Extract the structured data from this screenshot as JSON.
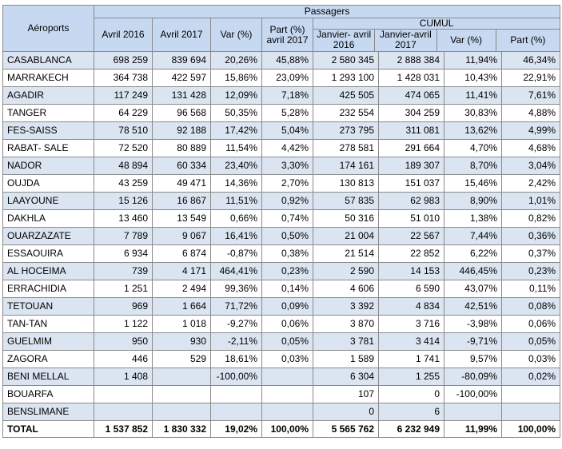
{
  "headers": {
    "airports": "Aéroports",
    "group_passengers": "Passagers",
    "group_cumul": "CUMUL",
    "april2016": "Avril 2016",
    "april2017": "Avril 2017",
    "var": "Var (%)",
    "part_april2017": "Part (%) avril 2017",
    "jan_apr2016": "Janvier- avril 2016",
    "jan_apr2017": "Janvier-avril 2017",
    "cum_var": "Var (%)",
    "cum_part": "Part (%)"
  },
  "rows": [
    [
      "CASABLANCA",
      "698 259",
      "839 694",
      "20,26%",
      "45,88%",
      "2 580 345",
      "2 888 384",
      "11,94%",
      "46,34%"
    ],
    [
      "MARRAKECH",
      "364 738",
      "422 597",
      "15,86%",
      "23,09%",
      "1 293 100",
      "1 428 031",
      "10,43%",
      "22,91%"
    ],
    [
      "AGADIR",
      "117 249",
      "131 428",
      "12,09%",
      "7,18%",
      "425 505",
      "474 065",
      "11,41%",
      "7,61%"
    ],
    [
      "TANGER",
      "64 229",
      "96 568",
      "50,35%",
      "5,28%",
      "232 554",
      "304 259",
      "30,83%",
      "4,88%"
    ],
    [
      "FES-SAISS",
      "78 510",
      "92 188",
      "17,42%",
      "5,04%",
      "273 795",
      "311 081",
      "13,62%",
      "4,99%"
    ],
    [
      "RABAT- SALE",
      "72 520",
      "80 889",
      "11,54%",
      "4,42%",
      "278 581",
      "291 664",
      "4,70%",
      "4,68%"
    ],
    [
      "NADOR",
      "48 894",
      "60 334",
      "23,40%",
      "3,30%",
      "174 161",
      "189 307",
      "8,70%",
      "3,04%"
    ],
    [
      "OUJDA",
      "43 259",
      "49 471",
      "14,36%",
      "2,70%",
      "130 813",
      "151 037",
      "15,46%",
      "2,42%"
    ],
    [
      "LAAYOUNE",
      "15 126",
      "16 867",
      "11,51%",
      "0,92%",
      "57 835",
      "62 983",
      "8,90%",
      "1,01%"
    ],
    [
      "DAKHLA",
      "13 460",
      "13 549",
      "0,66%",
      "0,74%",
      "50 316",
      "51 010",
      "1,38%",
      "0,82%"
    ],
    [
      "OUARZAZATE",
      "7 789",
      "9 067",
      "16,41%",
      "0,50%",
      "21 004",
      "22 567",
      "7,44%",
      "0,36%"
    ],
    [
      "ESSAOUIRA",
      "6 934",
      "6 874",
      "-0,87%",
      "0,38%",
      "21 514",
      "22 852",
      "6,22%",
      "0,37%"
    ],
    [
      "AL HOCEIMA",
      "739",
      "4 171",
      "464,41%",
      "0,23%",
      "2 590",
      "14 153",
      "446,45%",
      "0,23%"
    ],
    [
      "ERRACHIDIA",
      "1 251",
      "2 494",
      "99,36%",
      "0,14%",
      "4 606",
      "6 590",
      "43,07%",
      "0,11%"
    ],
    [
      "TETOUAN",
      "969",
      "1 664",
      "71,72%",
      "0,09%",
      "3 392",
      "4 834",
      "42,51%",
      "0,08%"
    ],
    [
      "TAN-TAN",
      "1 122",
      "1 018",
      "-9,27%",
      "0,06%",
      "3 870",
      "3 716",
      "-3,98%",
      "0,06%"
    ],
    [
      "GUELMIM",
      "950",
      "930",
      "-2,11%",
      "0,05%",
      "3 781",
      "3 414",
      "-9,71%",
      "0,05%"
    ],
    [
      "ZAGORA",
      "446",
      "529",
      "18,61%",
      "0,03%",
      "1 589",
      "1 741",
      "9,57%",
      "0,03%"
    ],
    [
      "BENI MELLAL",
      "1 408",
      "",
      "-100,00%",
      "",
      "6 304",
      "1 255",
      "-80,09%",
      "0,02%"
    ],
    [
      "BOUARFA",
      "",
      "",
      "",
      "",
      "107",
      "0",
      "-100,00%",
      ""
    ],
    [
      "BENSLIMANE",
      "",
      "",
      "",
      "",
      "0",
      "6",
      "",
      ""
    ]
  ],
  "total": [
    "TOTAL",
    "1 537 852",
    "1 830 332",
    "19,02%",
    "100,00%",
    "5 565 762",
    "6 232 949",
    "11,99%",
    "100,00%"
  ],
  "colors": {
    "header_bg": "#c6d9f1",
    "alt_row_bg": "#dbe5f1",
    "border": "#8a8a8a"
  }
}
